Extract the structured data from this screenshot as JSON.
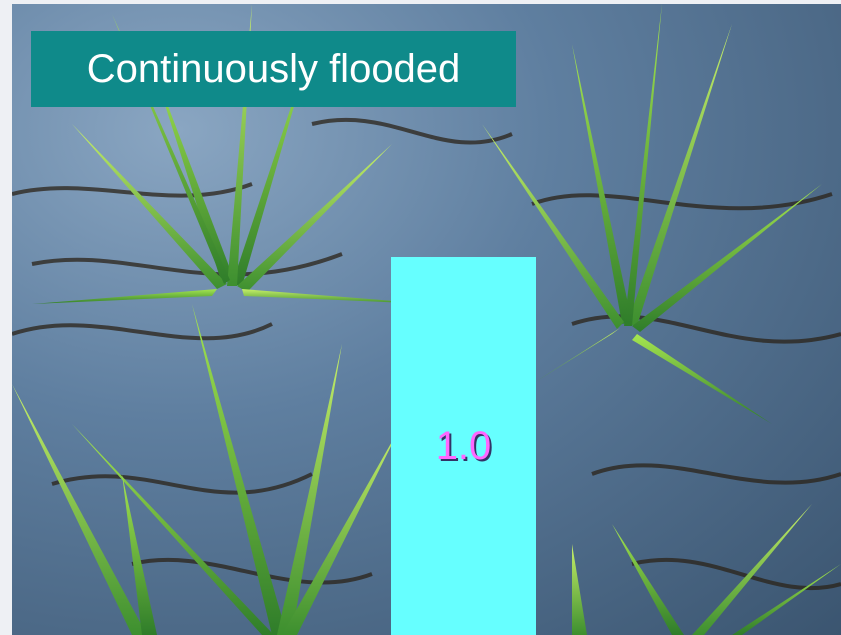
{
  "photo": {
    "icon": "rice-paddy-photo",
    "colors": {
      "water": "#5f7fa0",
      "leaf_light": "#9be04a",
      "leaf_dark": "#2f7d2a",
      "shadow": "#2b2318"
    }
  },
  "label": {
    "text": "Continuously flooded",
    "background": "#0f8a8a"
  },
  "bar": {
    "value_text": "1.0",
    "background": "#66ffff",
    "text_color": "#ff66ff"
  }
}
